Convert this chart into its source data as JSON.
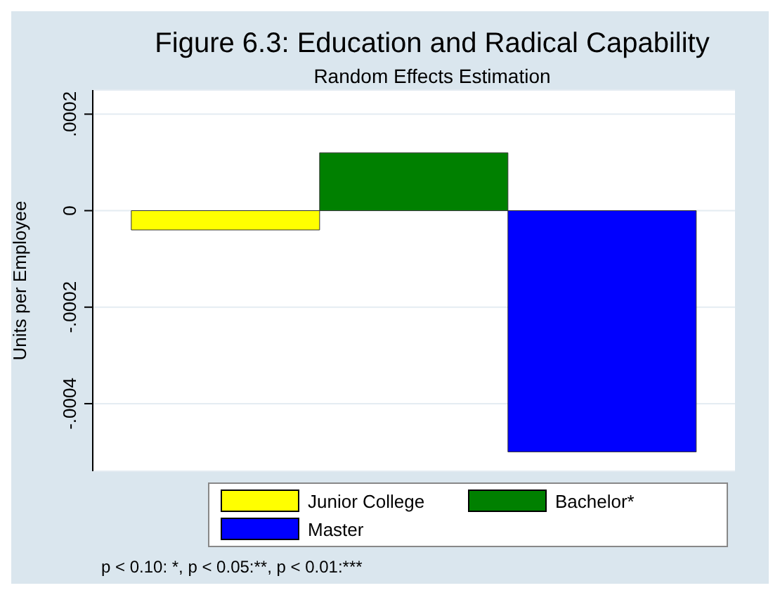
{
  "chart_data": {
    "type": "bar",
    "title": "Figure 6.3: Education and Radical Capability",
    "subtitle": "Random Effects Estimation",
    "ylabel": "Units per Employee",
    "categories": [
      null
    ],
    "series": [
      {
        "name": "Junior College",
        "color": "#ffff00",
        "values": [
          -4e-05
        ]
      },
      {
        "name": "Bachelor*",
        "color": "#008000",
        "values": [
          0.00012
        ]
      },
      {
        "name": "Master",
        "color": "#0000ff",
        "values": [
          -0.0005
        ]
      }
    ],
    "ylim": [
      -0.00054,
      0.00025
    ],
    "yticks": [
      {
        "value": 0.0002,
        "label": ".0002"
      },
      {
        "value": 0,
        "label": "0"
      },
      {
        "value": -0.0002,
        "label": "-.0002"
      },
      {
        "value": -0.0004,
        "label": "-.0004"
      }
    ],
    "grid": "y",
    "legend": "bottom",
    "tick_labels": "y",
    "annotations": [
      "p < 0.10: *, p < 0.05:**, p < 0.01:***"
    ]
  }
}
